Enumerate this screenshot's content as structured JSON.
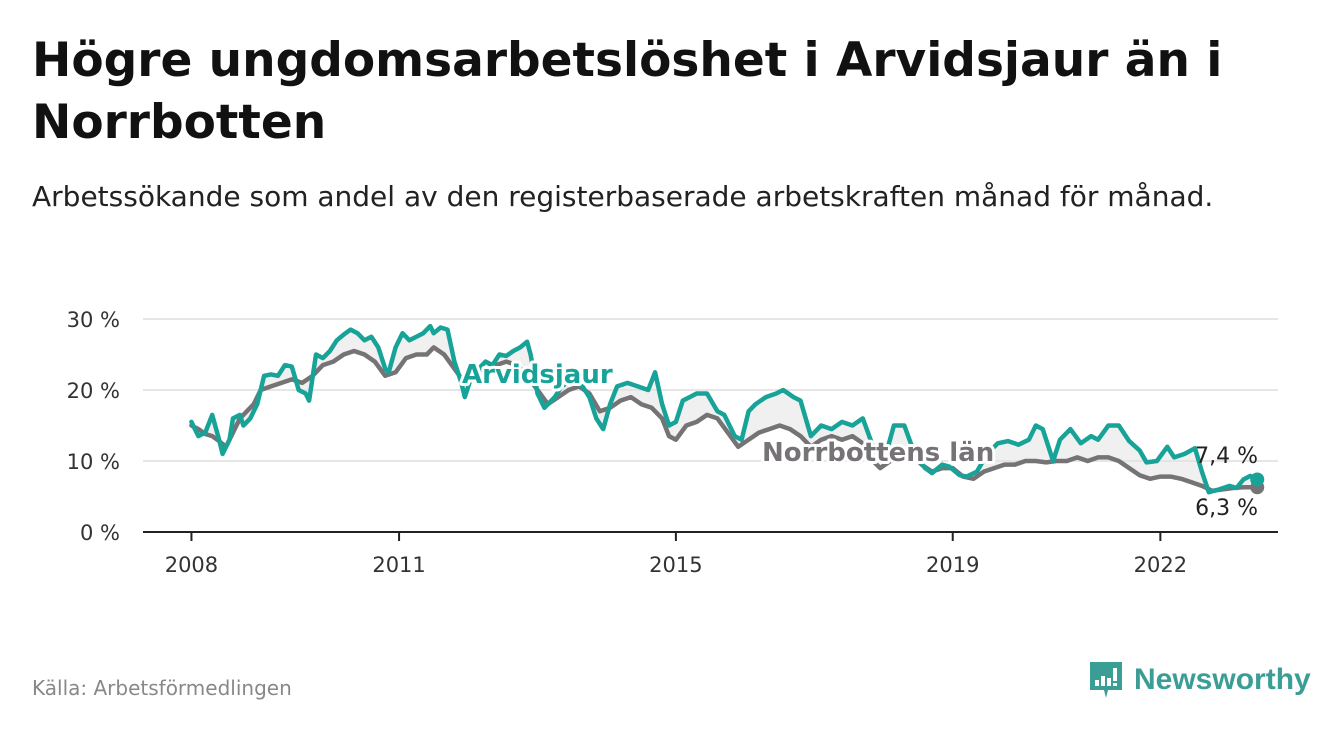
{
  "title": "Högre ungdomsarbetslöshet i Arvidsjaur än i Norrbotten",
  "subtitle": "Arbetssökande som andel av den registerbaserade arbetskraften månad för månad.",
  "source": "Källa: Arbetsförmedlingen",
  "brand": "Newsworthy",
  "colors": {
    "arvidsjaur": "#17a398",
    "norrbotten": "#767377",
    "band": "#e4e4e4",
    "grid": "#dddddd",
    "axis": "#222222",
    "brand": "#3a9d96"
  },
  "chart_data": {
    "type": "line",
    "title": "Högre ungdomsarbetslöshet i Arvidsjaur än i Norrbotten",
    "xlabel": "",
    "ylabel": "",
    "unit": "%",
    "xlim": [
      2007.3,
      2023.7
    ],
    "ylim": [
      0,
      30
    ],
    "x_ticks": [
      2008,
      2011,
      2015,
      2019,
      2022
    ],
    "y_ticks": [
      0,
      10,
      20,
      30
    ],
    "y_tick_labels": [
      "0 %",
      "10 %",
      "20 %",
      "30 %"
    ],
    "grid": true,
    "series": [
      {
        "name": "Arvidsjaur",
        "label": "Arvidsjaur",
        "end_label": "7,4 %",
        "points": [
          [
            2008.0,
            15.5
          ],
          [
            2008.1,
            13.5
          ],
          [
            2008.2,
            14.0
          ],
          [
            2008.3,
            16.5
          ],
          [
            2008.4,
            13.0
          ],
          [
            2008.45,
            11.0
          ],
          [
            2008.55,
            13.0
          ],
          [
            2008.6,
            16.0
          ],
          [
            2008.7,
            16.5
          ],
          [
            2008.75,
            15.0
          ],
          [
            2008.85,
            16.0
          ],
          [
            2008.95,
            18.0
          ],
          [
            2009.05,
            22.0
          ],
          [
            2009.15,
            22.2
          ],
          [
            2009.25,
            22.0
          ],
          [
            2009.35,
            23.5
          ],
          [
            2009.45,
            23.3
          ],
          [
            2009.55,
            20.0
          ],
          [
            2009.65,
            19.5
          ],
          [
            2009.7,
            18.5
          ],
          [
            2009.8,
            25.0
          ],
          [
            2009.9,
            24.5
          ],
          [
            2010.0,
            25.5
          ],
          [
            2010.1,
            27.0
          ],
          [
            2010.2,
            27.8
          ],
          [
            2010.3,
            28.5
          ],
          [
            2010.4,
            28.0
          ],
          [
            2010.5,
            27.0
          ],
          [
            2010.6,
            27.5
          ],
          [
            2010.7,
            26.0
          ],
          [
            2010.8,
            23.0
          ],
          [
            2010.85,
            22.5
          ],
          [
            2010.95,
            26.0
          ],
          [
            2011.05,
            28.0
          ],
          [
            2011.15,
            27.0
          ],
          [
            2011.25,
            27.5
          ],
          [
            2011.35,
            28.0
          ],
          [
            2011.45,
            29.0
          ],
          [
            2011.5,
            28.0
          ],
          [
            2011.6,
            28.8
          ],
          [
            2011.7,
            28.5
          ],
          [
            2011.8,
            24.0
          ],
          [
            2011.9,
            21.0
          ],
          [
            2011.95,
            19.0
          ],
          [
            2012.05,
            22.0
          ],
          [
            2012.15,
            23.0
          ],
          [
            2012.25,
            24.0
          ],
          [
            2012.35,
            23.5
          ],
          [
            2012.45,
            25.0
          ],
          [
            2012.55,
            24.8
          ],
          [
            2012.65,
            25.5
          ],
          [
            2012.75,
            26.0
          ],
          [
            2012.85,
            26.8
          ],
          [
            2012.9,
            25.0
          ],
          [
            2013.0,
            19.5
          ],
          [
            2013.1,
            17.5
          ],
          [
            2013.25,
            19.0
          ],
          [
            2013.35,
            20.5
          ],
          [
            2013.5,
            21.5
          ],
          [
            2013.65,
            20.5
          ],
          [
            2013.75,
            19.0
          ],
          [
            2013.85,
            16.0
          ],
          [
            2013.95,
            14.5
          ],
          [
            2014.05,
            18.0
          ],
          [
            2014.15,
            20.5
          ],
          [
            2014.3,
            21.0
          ],
          [
            2014.45,
            20.5
          ],
          [
            2014.6,
            20.0
          ],
          [
            2014.7,
            22.5
          ],
          [
            2014.8,
            18.0
          ],
          [
            2014.9,
            15.0
          ],
          [
            2015.0,
            15.5
          ],
          [
            2015.1,
            18.5
          ],
          [
            2015.2,
            19.0
          ],
          [
            2015.3,
            19.5
          ],
          [
            2015.45,
            19.5
          ],
          [
            2015.6,
            17.0
          ],
          [
            2015.7,
            16.5
          ],
          [
            2015.85,
            13.5
          ],
          [
            2015.95,
            13.0
          ],
          [
            2016.05,
            17.0
          ],
          [
            2016.15,
            18.0
          ],
          [
            2016.3,
            19.0
          ],
          [
            2016.45,
            19.5
          ],
          [
            2016.55,
            20.0
          ],
          [
            2016.7,
            19.0
          ],
          [
            2016.8,
            18.5
          ],
          [
            2016.95,
            13.5
          ],
          [
            2017.1,
            15.0
          ],
          [
            2017.25,
            14.5
          ],
          [
            2017.4,
            15.5
          ],
          [
            2017.55,
            15.0
          ],
          [
            2017.7,
            16.0
          ],
          [
            2017.85,
            12.0
          ],
          [
            2018.05,
            11.5
          ],
          [
            2018.15,
            15.0
          ],
          [
            2018.3,
            15.0
          ],
          [
            2018.45,
            11.0
          ],
          [
            2018.6,
            9.0
          ],
          [
            2018.7,
            8.3
          ],
          [
            2018.85,
            9.5
          ],
          [
            2018.95,
            9.2
          ],
          [
            2019.1,
            8.0
          ],
          [
            2019.2,
            7.8
          ],
          [
            2019.35,
            8.5
          ],
          [
            2019.5,
            11.0
          ],
          [
            2019.65,
            12.5
          ],
          [
            2019.8,
            12.8
          ],
          [
            2019.95,
            12.3
          ],
          [
            2020.1,
            13.0
          ],
          [
            2020.2,
            15.0
          ],
          [
            2020.3,
            14.5
          ],
          [
            2020.45,
            10.0
          ],
          [
            2020.55,
            13.0
          ],
          [
            2020.7,
            14.5
          ],
          [
            2020.85,
            12.5
          ],
          [
            2021.0,
            13.5
          ],
          [
            2021.1,
            13.0
          ],
          [
            2021.25,
            15.0
          ],
          [
            2021.4,
            15.0
          ],
          [
            2021.55,
            12.8
          ],
          [
            2021.7,
            11.5
          ],
          [
            2021.8,
            9.8
          ],
          [
            2021.95,
            10.0
          ],
          [
            2022.1,
            12.0
          ],
          [
            2022.2,
            10.5
          ],
          [
            2022.35,
            11.0
          ],
          [
            2022.5,
            11.8
          ],
          [
            2022.6,
            8.5
          ],
          [
            2022.7,
            5.6
          ],
          [
            2022.85,
            6.0
          ],
          [
            2023.0,
            6.5
          ],
          [
            2023.1,
            6.2
          ],
          [
            2023.2,
            7.4
          ],
          [
            2023.3,
            7.9
          ],
          [
            2023.4,
            7.4
          ]
        ]
      },
      {
        "name": "Norrbottens län",
        "label": "Norrbottens län",
        "end_label": "6,3 %",
        "points": [
          [
            2008.0,
            15.0
          ],
          [
            2008.1,
            14.5
          ],
          [
            2008.2,
            13.8
          ],
          [
            2008.3,
            13.5
          ],
          [
            2008.4,
            12.8
          ],
          [
            2008.5,
            12.0
          ],
          [
            2008.6,
            14.0
          ],
          [
            2008.7,
            16.0
          ],
          [
            2008.8,
            17.0
          ],
          [
            2008.9,
            18.0
          ],
          [
            2009.0,
            20.0
          ],
          [
            2009.15,
            20.5
          ],
          [
            2009.3,
            21.0
          ],
          [
            2009.45,
            21.5
          ],
          [
            2009.6,
            21.0
          ],
          [
            2009.75,
            22.0
          ],
          [
            2009.9,
            23.5
          ],
          [
            2010.05,
            24.0
          ],
          [
            2010.2,
            25.0
          ],
          [
            2010.35,
            25.5
          ],
          [
            2010.5,
            25.0
          ],
          [
            2010.65,
            24.0
          ],
          [
            2010.8,
            22.0
          ],
          [
            2010.95,
            22.5
          ],
          [
            2011.1,
            24.5
          ],
          [
            2011.25,
            25.0
          ],
          [
            2011.4,
            25.0
          ],
          [
            2011.5,
            26.0
          ],
          [
            2011.65,
            25.0
          ],
          [
            2011.8,
            23.0
          ],
          [
            2011.95,
            21.0
          ],
          [
            2012.1,
            22.0
          ],
          [
            2012.25,
            23.0
          ],
          [
            2012.4,
            23.5
          ],
          [
            2012.55,
            24.0
          ],
          [
            2012.7,
            23.5
          ],
          [
            2012.85,
            22.0
          ],
          [
            2013.0,
            20.0
          ],
          [
            2013.15,
            18.0
          ],
          [
            2013.3,
            19.0
          ],
          [
            2013.45,
            20.0
          ],
          [
            2013.6,
            20.5
          ],
          [
            2013.75,
            19.5
          ],
          [
            2013.9,
            17.0
          ],
          [
            2014.05,
            17.5
          ],
          [
            2014.2,
            18.5
          ],
          [
            2014.35,
            19.0
          ],
          [
            2014.5,
            18.0
          ],
          [
            2014.65,
            17.5
          ],
          [
            2014.8,
            16.0
          ],
          [
            2014.9,
            13.5
          ],
          [
            2015.0,
            13.0
          ],
          [
            2015.15,
            15.0
          ],
          [
            2015.3,
            15.5
          ],
          [
            2015.45,
            16.5
          ],
          [
            2015.6,
            16.0
          ],
          [
            2015.75,
            14.0
          ],
          [
            2015.9,
            12.0
          ],
          [
            2016.05,
            13.0
          ],
          [
            2016.2,
            14.0
          ],
          [
            2016.35,
            14.5
          ],
          [
            2016.5,
            15.0
          ],
          [
            2016.65,
            14.5
          ],
          [
            2016.8,
            13.5
          ],
          [
            2016.95,
            12.0
          ],
          [
            2017.1,
            13.0
          ],
          [
            2017.25,
            13.5
          ],
          [
            2017.4,
            13.0
          ],
          [
            2017.55,
            13.5
          ],
          [
            2017.7,
            12.5
          ],
          [
            2017.85,
            10.0
          ],
          [
            2017.95,
            9.0
          ],
          [
            2018.1,
            10.0
          ],
          [
            2018.25,
            11.0
          ],
          [
            2018.4,
            11.0
          ],
          [
            2018.55,
            9.5
          ],
          [
            2018.7,
            8.5
          ],
          [
            2018.85,
            9.0
          ],
          [
            2019.0,
            9.0
          ],
          [
            2019.15,
            7.8
          ],
          [
            2019.3,
            7.5
          ],
          [
            2019.45,
            8.5
          ],
          [
            2019.6,
            9.0
          ],
          [
            2019.75,
            9.5
          ],
          [
            2019.9,
            9.5
          ],
          [
            2020.05,
            10.0
          ],
          [
            2020.2,
            10.0
          ],
          [
            2020.35,
            9.8
          ],
          [
            2020.5,
            10.0
          ],
          [
            2020.65,
            10.0
          ],
          [
            2020.8,
            10.5
          ],
          [
            2020.95,
            10.0
          ],
          [
            2021.1,
            10.5
          ],
          [
            2021.25,
            10.5
          ],
          [
            2021.4,
            10.0
          ],
          [
            2021.55,
            9.0
          ],
          [
            2021.7,
            8.0
          ],
          [
            2021.85,
            7.5
          ],
          [
            2022.0,
            7.8
          ],
          [
            2022.15,
            7.8
          ],
          [
            2022.3,
            7.5
          ],
          [
            2022.45,
            7.0
          ],
          [
            2022.6,
            6.5
          ],
          [
            2022.75,
            5.8
          ],
          [
            2022.9,
            6.0
          ],
          [
            2023.05,
            6.2
          ],
          [
            2023.2,
            6.3
          ],
          [
            2023.4,
            6.3
          ]
        ]
      }
    ]
  }
}
